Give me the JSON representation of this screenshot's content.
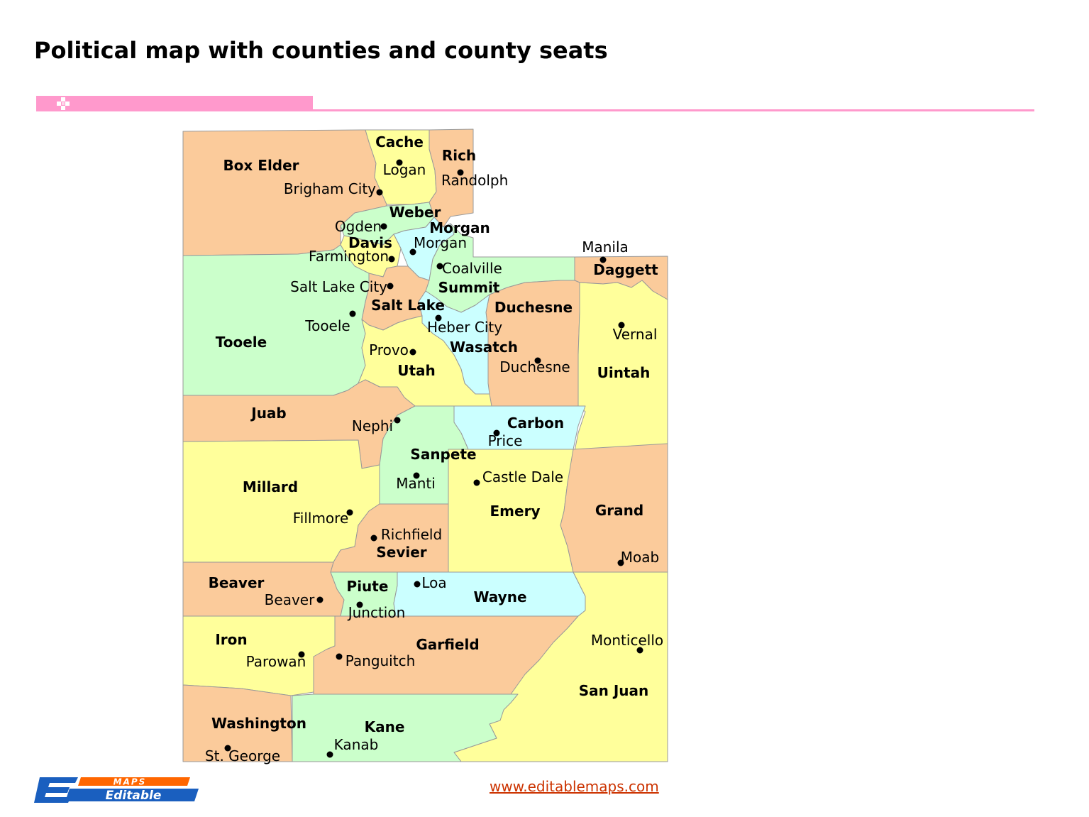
{
  "title": "Political map with counties and county seats",
  "website": "www.editablemaps.com",
  "logo": {
    "top_text": "MAPS",
    "bottom_text": "Editable"
  },
  "colors": {
    "orange": "#fbcb9b",
    "yellow": "#ffff9b",
    "green": "#cbffcb",
    "blue": "#cbffff",
    "accent_band": "#ff99cc",
    "link": "#cc3300",
    "logo_blue": "#1a5fbf",
    "logo_orange": "#ff6600",
    "border": "#999999"
  },
  "counties": [
    {
      "name": "Box Elder",
      "color": "orange",
      "seat": "Brigham City"
    },
    {
      "name": "Cache",
      "color": "yellow",
      "seat": "Logan"
    },
    {
      "name": "Rich",
      "color": "orange",
      "seat": "Randolph"
    },
    {
      "name": "Weber",
      "color": "green",
      "seat": "Ogden"
    },
    {
      "name": "Morgan",
      "color": "blue",
      "seat": "Morgan"
    },
    {
      "name": "Davis",
      "color": "yellow",
      "seat": "Farmington"
    },
    {
      "name": "Daggett",
      "color": "orange",
      "seat": "Manila"
    },
    {
      "name": "Summit",
      "color": "green",
      "seat": "Coalville"
    },
    {
      "name": "Salt Lake",
      "color": "orange",
      "seat": "Salt Lake City"
    },
    {
      "name": "Tooele",
      "color": "green",
      "seat": "Tooele"
    },
    {
      "name": "Duchesne",
      "color": "orange",
      "seat": "Duchesne"
    },
    {
      "name": "Wasatch",
      "color": "blue",
      "seat": "Heber City"
    },
    {
      "name": "Uintah",
      "color": "yellow",
      "seat": "Vernal"
    },
    {
      "name": "Utah",
      "color": "yellow",
      "seat": "Provo"
    },
    {
      "name": "Juab",
      "color": "orange",
      "seat": "Nephi"
    },
    {
      "name": "Carbon",
      "color": "blue",
      "seat": "Price"
    },
    {
      "name": "Sanpete",
      "color": "green",
      "seat": "Manti"
    },
    {
      "name": "Millard",
      "color": "yellow",
      "seat": "Fillmore"
    },
    {
      "name": "Emery",
      "color": "yellow",
      "seat": "Castle Dale"
    },
    {
      "name": "Grand",
      "color": "orange",
      "seat": "Moab"
    },
    {
      "name": "Sevier",
      "color": "orange",
      "seat": "Richfield"
    },
    {
      "name": "Beaver",
      "color": "orange",
      "seat": "Beaver"
    },
    {
      "name": "Piute",
      "color": "green",
      "seat": "Junction"
    },
    {
      "name": "Wayne",
      "color": "blue",
      "seat": "Loa"
    },
    {
      "name": "Iron",
      "color": "yellow",
      "seat": "Parowan"
    },
    {
      "name": "Garfield",
      "color": "orange",
      "seat": "Panguitch"
    },
    {
      "name": "San Juan",
      "color": "yellow",
      "seat": "Monticello"
    },
    {
      "name": "Washington",
      "color": "orange",
      "seat": "St. George"
    },
    {
      "name": "Kane",
      "color": "green",
      "seat": "Kanab"
    }
  ]
}
